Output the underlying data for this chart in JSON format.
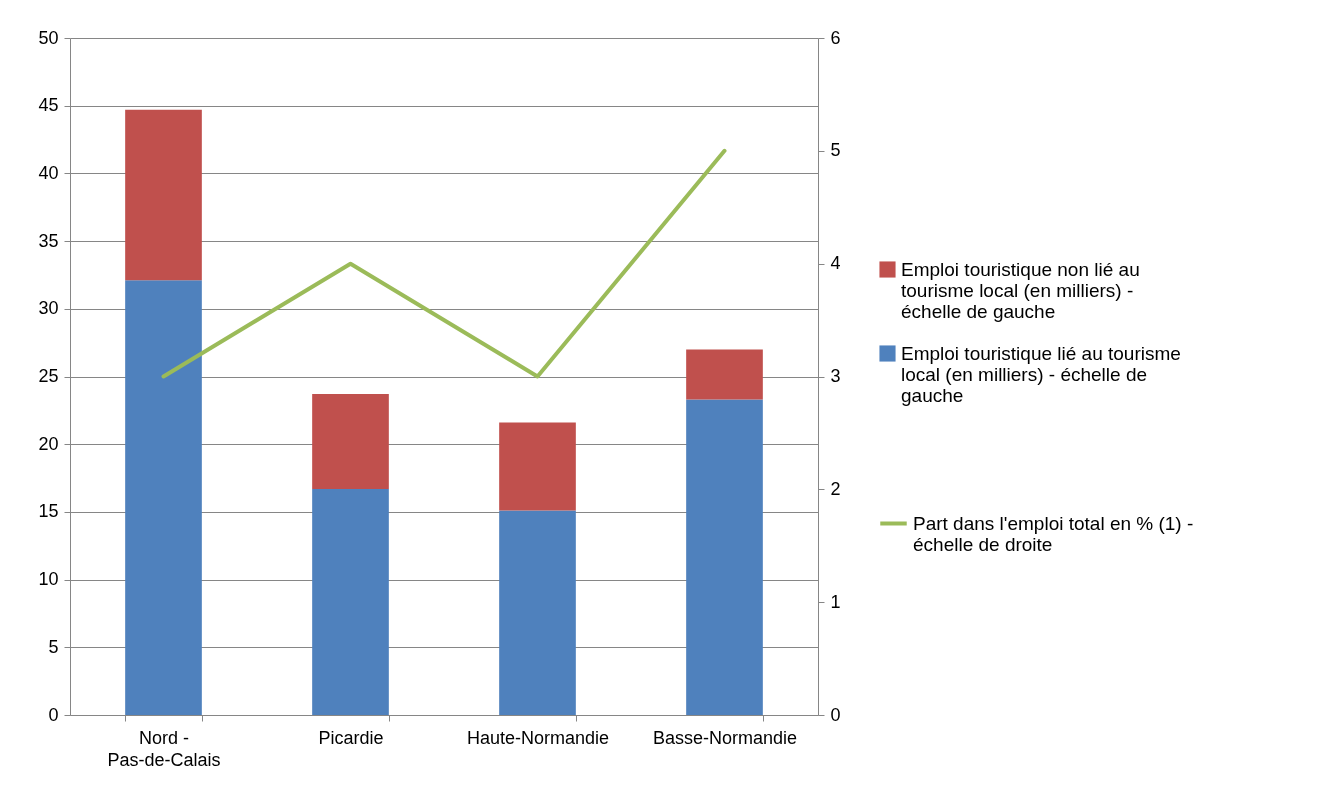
{
  "chart_data": {
    "type": "bar",
    "stacked": true,
    "categories": [
      "Nord - Pas-de-Calais",
      "Picardie",
      "Haute-Normandie",
      "Basse-Normandie"
    ],
    "series": [
      {
        "name": "Emploi touristique lié au tourisme local (en milliers) - échelle de gauche",
        "color": "#4f81bd",
        "values": [
          32.1,
          16.7,
          15.1,
          23.3
        ]
      },
      {
        "name": "Emploi touristique non lié au tourisme local  (en milliers) - échelle de gauche",
        "color": "#c0504d",
        "values": [
          12.6,
          7.0,
          6.5,
          3.7
        ]
      },
      {
        "name": "Part dans l'emploi total en % (1) - échelle de droite",
        "color": "#9bbb59",
        "type": "line",
        "axis": "y2",
        "values": [
          3,
          4,
          3,
          5
        ]
      }
    ],
    "ylim": [
      0,
      50
    ],
    "yticks": [
      0,
      5,
      10,
      15,
      20,
      25,
      30,
      35,
      40,
      45,
      50
    ],
    "y2lim": [
      0,
      6
    ],
    "y2ticks": [
      0,
      1,
      2,
      3,
      4,
      5,
      6
    ],
    "grid": "y",
    "legend": "right"
  }
}
